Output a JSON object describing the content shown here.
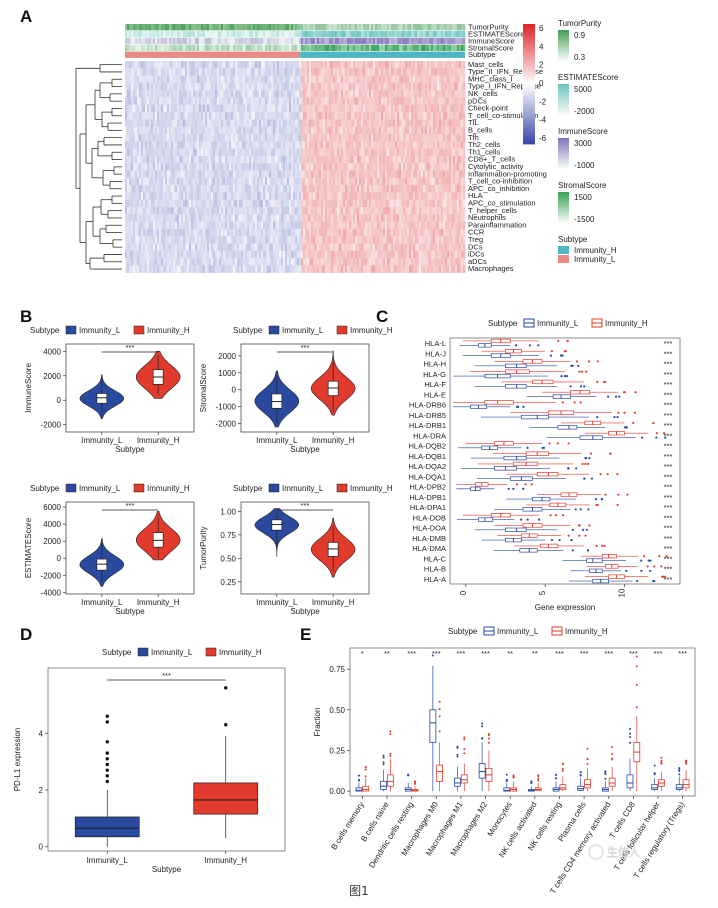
{
  "figure": {
    "caption": "图1",
    "watermark": "生信人"
  },
  "colors": {
    "low": "#3b4aa8",
    "mid": "#ffffff",
    "high": "#e0262b",
    "immL": "#2a4aa0",
    "immH": "#e23b2e",
    "annH": "#4fb7c4",
    "annL": "#e98a85",
    "tp": "#4aa05a",
    "est": "#6ec6c0",
    "imm": "#8577bf",
    "str": "#3aa35a"
  },
  "panels": {
    "A": {
      "label": "A",
      "annotations": [
        "TumorPurity",
        "ESTIMATEScore",
        "ImmuneScore",
        "StromalScore",
        "Subtype"
      ],
      "rows": [
        "Mast_cells",
        "Type_II_IFN_Reponse",
        "MHC_class_I",
        "Type_I_IFN_Reponse",
        "NK_cells",
        "pDCs",
        "Check-point",
        "T_cell_co-stimulation",
        "TIL",
        "B_cells",
        "Tfh",
        "Th2_cells",
        "Th1_cells",
        "CD8+_T_cells",
        "Cytolytic_activity",
        "Inflammation-promoting",
        "T_cell_co-inhibition",
        "APC_co_inhibition",
        "HLA",
        "APC_co_stimulation",
        "T_helper_cells",
        "Neutrophils",
        "Parainflammation",
        "CCR",
        "Treg",
        "DCs",
        "iDCs",
        "aDCs",
        "Macrophages"
      ],
      "colorbar": {
        "ticks": [
          "6",
          "4",
          "2",
          "0",
          "-2",
          "-4",
          "-6"
        ]
      },
      "legends": [
        {
          "title": "TumorPurity",
          "labels": [
            "0.9",
            "0.3"
          ]
        },
        {
          "title": "ESTIMATEScore",
          "labels": [
            "5000",
            "-2000"
          ]
        },
        {
          "title": "ImmuneScore",
          "labels": [
            "3000",
            "-1000"
          ]
        },
        {
          "title": "StromalScore",
          "labels": [
            "1500",
            "-1500"
          ]
        },
        {
          "title": "Subtype",
          "labels": [
            "Immunity_H",
            "Immunity_L"
          ]
        }
      ]
    },
    "B": {
      "label": "B",
      "legend_title": "Subtype",
      "groups": [
        "Immunity_L",
        "Immunity_H"
      ],
      "xlabel": "Subtype",
      "sig": "***"
    },
    "C": {
      "label": "C",
      "legend_title": "Subtype",
      "groups": [
        "Immunity_L",
        "Immunity_H"
      ],
      "xlabel": "Gene expression",
      "sig": "***"
    },
    "D": {
      "label": "D",
      "legend_title": "Subtype",
      "groups": [
        "Immunity_L",
        "Immunity_H"
      ],
      "xlabel": "Subtype",
      "ylabel": "PD-L1 expression",
      "sig": "***"
    },
    "E": {
      "label": "E",
      "legend_title": "Subtype",
      "groups": [
        "Immunity_L",
        "Immunity_H"
      ],
      "ylabel": "Fraction"
    }
  },
  "chart_data": [
    {
      "type": "violin",
      "panel": "B1",
      "ylabel": "ImmuneScore",
      "categories": [
        "Immunity_L",
        "Immunity_H"
      ],
      "yticks": [
        -2000,
        0,
        2000,
        4000
      ],
      "ylim": [
        -2600,
        4600
      ],
      "median": [
        200,
        1900
      ],
      "q1": [
        -250,
        1300
      ],
      "q3": [
        550,
        2500
      ],
      "wlo": [
        -1200,
        500
      ],
      "whi": [
        1800,
        3700
      ],
      "vmin": [
        -1500,
        150
      ],
      "vmax": [
        2100,
        4000
      ]
    },
    {
      "type": "violin",
      "panel": "B2",
      "ylabel": "StromalScore",
      "categories": [
        "Immunity_L",
        "Immunity_H"
      ],
      "yticks": [
        -2000,
        -1000,
        0,
        1000,
        2000
      ],
      "ylim": [
        -2500,
        2700
      ],
      "median": [
        -700,
        100
      ],
      "q1": [
        -1100,
        -350
      ],
      "q3": [
        -250,
        500
      ],
      "wlo": [
        -2000,
        -1300
      ],
      "whi": [
        800,
        1700
      ],
      "vmin": [
        -2200,
        -1500
      ],
      "vmax": [
        1100,
        2300
      ]
    },
    {
      "type": "violin",
      "panel": "B3",
      "ylabel": "ESTIMATEScore",
      "categories": [
        "Immunity_L",
        "Immunity_H"
      ],
      "yticks": [
        -4000,
        -2000,
        0,
        2000,
        4000,
        6000
      ],
      "ylim": [
        -4200,
        6600
      ],
      "median": [
        -700,
        2100
      ],
      "q1": [
        -1400,
        1300
      ],
      "q3": [
        -100,
        3000
      ],
      "wlo": [
        -2900,
        0
      ],
      "whi": [
        1600,
        4800
      ],
      "vmin": [
        -3300,
        -200
      ],
      "vmax": [
        2300,
        5500
      ]
    },
    {
      "type": "violin",
      "panel": "B4",
      "ylabel": "TumorPurity",
      "categories": [
        "Immunity_L",
        "Immunity_H"
      ],
      "yticks": [
        0.25,
        0.5,
        0.75,
        1.0
      ],
      "ytick_labels": [
        "0.25",
        "0.50",
        "0.75",
        "1.00"
      ],
      "ylim": [
        0.12,
        1.1
      ],
      "median": [
        0.86,
        0.6
      ],
      "q1": [
        0.8,
        0.52
      ],
      "q3": [
        0.91,
        0.67
      ],
      "wlo": [
        0.65,
        0.36
      ],
      "whi": [
        1.0,
        0.85
      ],
      "vmin": [
        0.52,
        0.3
      ],
      "vmax": [
        1.03,
        0.93
      ]
    },
    {
      "type": "boxplot",
      "panel": "C",
      "orientation": "horizontal",
      "categories": [
        "HLA-L",
        "HLA-J",
        "HLA-H",
        "HLA-G",
        "HLA-F",
        "HLA-E",
        "HLA-DRB6",
        "HLA-DRB5",
        "HLA-DRB1",
        "HLA-DRA",
        "HLA-DQB2",
        "HLA-DQB1",
        "HLA-DQA2",
        "HLA-DQA1",
        "HLA-DPB2",
        "HLA-DPB1",
        "HLA-DPA1",
        "HLA-DOB",
        "HLA-DOA",
        "HLA-DMB",
        "HLA-DMA",
        "HLA-C",
        "HLA-B",
        "HLA-A"
      ],
      "xticks": [
        0,
        5,
        10
      ],
      "xlim": [
        -1,
        13.5
      ],
      "L": {
        "median": [
          1.2,
          2.2,
          3.2,
          2.0,
          3.2,
          6.0,
          0.8,
          4.5,
          6.5,
          8.0,
          1.5,
          3.2,
          2.5,
          3.5,
          0.6,
          4.8,
          4.2,
          1.2,
          3.2,
          3.0,
          4.0,
          8.0,
          8.2,
          8.5
        ],
        "q1": [
          0.8,
          1.6,
          2.5,
          1.2,
          2.5,
          5.5,
          0.3,
          3.5,
          5.8,
          7.2,
          1.0,
          2.4,
          1.8,
          2.8,
          0.3,
          4.2,
          3.6,
          0.8,
          2.5,
          2.5,
          3.4,
          7.6,
          7.8,
          8.0
        ],
        "q3": [
          1.6,
          2.8,
          3.8,
          2.8,
          3.8,
          6.6,
          1.3,
          5.2,
          7.0,
          8.6,
          2.0,
          3.8,
          3.2,
          4.2,
          0.9,
          5.3,
          4.8,
          1.7,
          3.8,
          3.5,
          4.5,
          8.6,
          8.6,
          9.0
        ]
      },
      "H": {
        "median": [
          2.2,
          3.0,
          4.2,
          3.2,
          4.8,
          7.2,
          2.0,
          6.0,
          8.0,
          9.5,
          2.4,
          4.5,
          3.8,
          5.2,
          1.0,
          6.5,
          5.8,
          2.2,
          4.2,
          4.0,
          5.2,
          9.0,
          9.2,
          9.5
        ],
        "q1": [
          1.6,
          2.5,
          3.6,
          2.5,
          4.2,
          6.6,
          1.2,
          5.2,
          7.5,
          9.0,
          1.8,
          3.8,
          3.0,
          4.5,
          0.6,
          6.0,
          5.3,
          1.6,
          3.6,
          3.5,
          4.7,
          8.6,
          8.8,
          9.0
        ],
        "q3": [
          2.8,
          3.5,
          4.8,
          4.0,
          5.5,
          7.8,
          3.0,
          6.8,
          8.5,
          10.0,
          3.0,
          5.2,
          4.5,
          5.8,
          1.4,
          7.0,
          6.3,
          2.8,
          4.8,
          4.5,
          5.8,
          9.5,
          9.6,
          10.0
        ]
      }
    },
    {
      "type": "boxplot",
      "panel": "D",
      "categories": [
        "Immunity_L",
        "Immunity_H"
      ],
      "yticks": [
        0,
        2,
        4
      ],
      "ylim": [
        -0.15,
        6.3
      ],
      "median": [
        0.65,
        1.65
      ],
      "q1": [
        0.35,
        1.15
      ],
      "q3": [
        1.05,
        2.25
      ],
      "wlo": [
        0.0,
        0.3
      ],
      "whi": [
        2.0,
        3.9
      ],
      "outliers": [
        [
          2.3,
          2.5,
          2.7,
          2.9,
          3.1,
          3.3,
          3.7,
          4.4,
          4.6
        ],
        [
          4.3,
          5.6
        ]
      ]
    },
    {
      "type": "boxplot",
      "panel": "E",
      "categories": [
        "B cells memory",
        "B cells naive",
        "Dendritic cells resting",
        "Macrophages M0",
        "Macrophages M1",
        "Macrophages M2",
        "Monocytes",
        "NK cells activated",
        "NK cells resting",
        "Plasma cells",
        "T cells CD4 memory activated",
        "T cells CD8",
        "T cells follicular helper",
        "T cells regulatory (Tregs)"
      ],
      "yticks": [
        0,
        0.25,
        0.5,
        0.75
      ],
      "ytick_labels": [
        "0.00",
        "0.25",
        "0.50",
        "0.75"
      ],
      "ylim": [
        -0.03,
        0.88
      ],
      "sig": [
        "*",
        "**",
        "***",
        "***",
        "***",
        "***",
        "**",
        "**",
        "***",
        "***",
        "***",
        "***",
        "***",
        "***"
      ],
      "L": {
        "median": [
          0.005,
          0.03,
          0.01,
          0.42,
          0.05,
          0.12,
          0.005,
          0.005,
          0.01,
          0.015,
          0.01,
          0.05,
          0.02,
          0.02
        ],
        "q1": [
          0,
          0.01,
          0,
          0.3,
          0.03,
          0.08,
          0,
          0,
          0,
          0.005,
          0,
          0.02,
          0.01,
          0.01
        ],
        "q3": [
          0.02,
          0.06,
          0.02,
          0.5,
          0.08,
          0.17,
          0.02,
          0.01,
          0.02,
          0.03,
          0.02,
          0.1,
          0.04,
          0.04
        ],
        "whi": [
          0.05,
          0.13,
          0.05,
          0.77,
          0.15,
          0.3,
          0.05,
          0.03,
          0.06,
          0.08,
          0.06,
          0.2,
          0.08,
          0.09
        ]
      },
      "H": {
        "median": [
          0.01,
          0.06,
          0.005,
          0.12,
          0.07,
          0.1,
          0.01,
          0.01,
          0.02,
          0.04,
          0.05,
          0.24,
          0.05,
          0.04
        ],
        "q1": [
          0,
          0.03,
          0,
          0.06,
          0.05,
          0.06,
          0,
          0.005,
          0.01,
          0.02,
          0.03,
          0.18,
          0.03,
          0.02
        ],
        "q3": [
          0.03,
          0.1,
          0.01,
          0.16,
          0.1,
          0.14,
          0.02,
          0.02,
          0.04,
          0.07,
          0.08,
          0.3,
          0.07,
          0.07
        ],
        "whi": [
          0.08,
          0.2,
          0.03,
          0.3,
          0.17,
          0.25,
          0.06,
          0.05,
          0.09,
          0.14,
          0.15,
          0.46,
          0.12,
          0.13
        ]
      }
    }
  ]
}
